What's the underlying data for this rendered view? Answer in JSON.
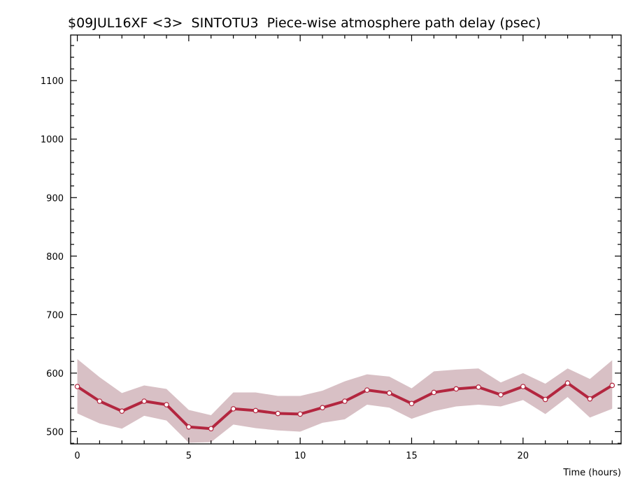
{
  "chart_data": {
    "type": "line",
    "title": "$09JUL16XF <3>  SINTOTU3  Piece-wise atmosphere path delay (psec)",
    "xlabel": "Time (hours)",
    "ylabel": "",
    "xlim": [
      -0.3,
      24.4
    ],
    "ylim": [
      479,
      1178
    ],
    "x_ticks": [
      0,
      5,
      10,
      15,
      20
    ],
    "y_ticks": [
      500,
      600,
      700,
      800,
      900,
      1000,
      1100
    ],
    "grid": false,
    "series": [
      {
        "x": [
          0,
          1,
          2,
          3,
          4,
          5,
          6,
          7,
          8,
          9,
          10,
          11,
          12,
          13,
          14,
          15,
          16,
          17,
          18,
          19,
          20,
          21,
          22,
          23,
          24
        ],
        "values": [
          577,
          552,
          535,
          552,
          546,
          508,
          505,
          539,
          536,
          531,
          530,
          541,
          552,
          571,
          566,
          548,
          567,
          573,
          576,
          563,
          577,
          555,
          583,
          556,
          579
        ],
        "upper": [
          624,
          593,
          566,
          579,
          573,
          537,
          528,
          567,
          567,
          561,
          561,
          570,
          586,
          598,
          594,
          574,
          603,
          606,
          608,
          584,
          600,
          582,
          608,
          590,
          622
        ],
        "lower": [
          531,
          514,
          505,
          527,
          519,
          481,
          482,
          512,
          506,
          502,
          500,
          515,
          521,
          546,
          541,
          522,
          535,
          543,
          546,
          543,
          554,
          530,
          559,
          524,
          539
        ]
      }
    ],
    "colors": {
      "line": "#b3263f",
      "band": "#d8c0c5",
      "marker_fill": "#ffffff"
    }
  }
}
